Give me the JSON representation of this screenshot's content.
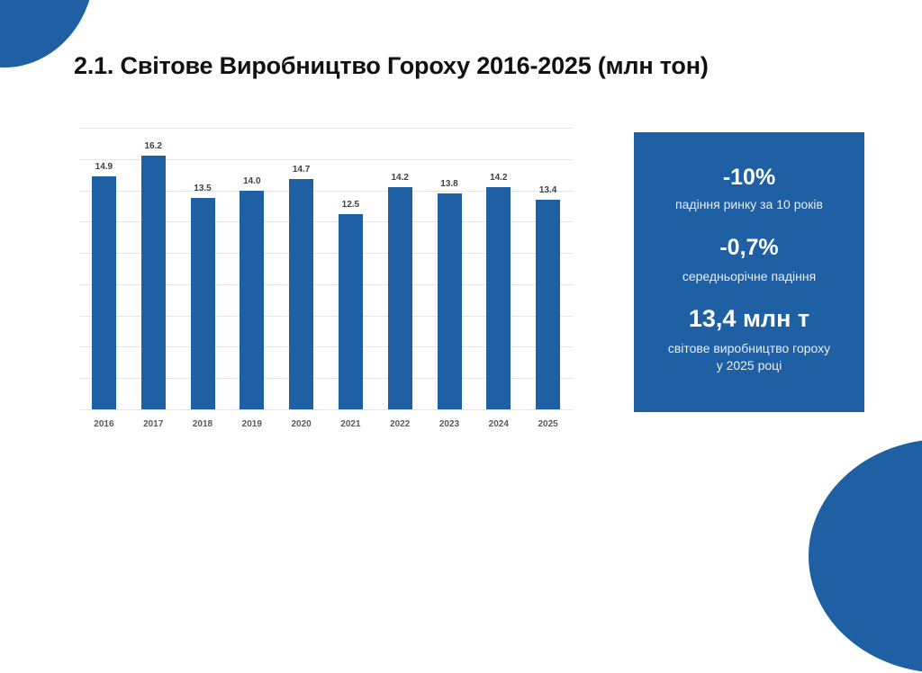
{
  "slide": {
    "title": "2.1. Світове Виробництво Гороху 2016-2025 (млн тон)",
    "accent_color": "#1f5fa3"
  },
  "chart_data": {
    "type": "bar",
    "title": "Світове Виробництво Гороху 2016-2025 (млн тон)",
    "categories": [
      "2016",
      "2017",
      "2018",
      "2019",
      "2020",
      "2021",
      "2022",
      "2023",
      "2024",
      "2025"
    ],
    "values": [
      14.9,
      16.2,
      13.5,
      14.0,
      14.7,
      12.5,
      14.2,
      13.8,
      14.2,
      13.4
    ],
    "value_labels": [
      "14.9",
      "16.2",
      "13.5",
      "14.0",
      "14.7",
      "12.5",
      "14.2",
      "13.8",
      "14.2",
      "13.4"
    ],
    "xlabel": "",
    "ylabel": "",
    "ylim": [
      0,
      18
    ],
    "grid": true,
    "y_axis_visible": false,
    "legend": "none",
    "bar_color": "#1f5fa3"
  },
  "stats": {
    "items": [
      {
        "value": "-10%",
        "caption_lines": [
          "падіння ринку за 10 років"
        ]
      },
      {
        "value": "-0,7%",
        "caption_lines": [
          "середньорічне падіння"
        ]
      },
      {
        "value": "13,4 млн т",
        "caption_lines": [
          "світове виробництво гороху",
          "у 2025 році"
        ]
      }
    ]
  }
}
